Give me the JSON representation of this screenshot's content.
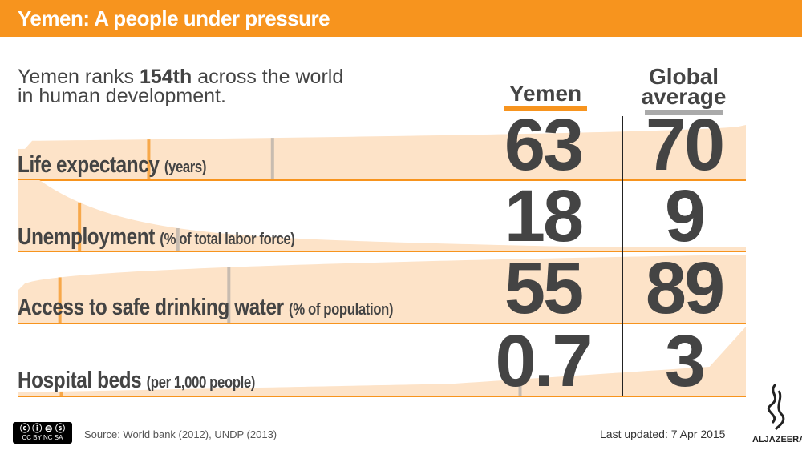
{
  "header": {
    "title": "Yemen: A people under pressure"
  },
  "intro": {
    "before": "Yemen ranks ",
    "rank": "154th",
    "after": " across the world in human development."
  },
  "columns": {
    "yemen": "Yemen",
    "global": "Global average"
  },
  "colors": {
    "accent": "#f7941e",
    "area": "#fde3c8",
    "yemen_marker": "#f7a84a",
    "global_marker": "#c8bcb0",
    "text": "#444444"
  },
  "chart_data": {
    "type": "table",
    "columns": [
      "Yemen",
      "Global average"
    ],
    "rows": [
      {
        "label": "Life expectancy",
        "unit": "(years)",
        "yemen": "63",
        "global": "70"
      },
      {
        "label": "Unemployment",
        "unit": "(% of total labor force)",
        "yemen": "18",
        "global": "9"
      },
      {
        "label": "Access to safe drinking water",
        "unit": "(% of population)",
        "yemen": "55",
        "global": "89"
      },
      {
        "label": "Hospital beds",
        "unit": "(per 1,000 people)",
        "yemen": "0.7",
        "global": "3"
      }
    ]
  },
  "footer": {
    "license": "CC BY NC SA",
    "source": "Source: World bank (2012), UNDP (2013)",
    "updated": "Last updated: 7 Apr 2015",
    "logo": "ALJAZEERA"
  }
}
